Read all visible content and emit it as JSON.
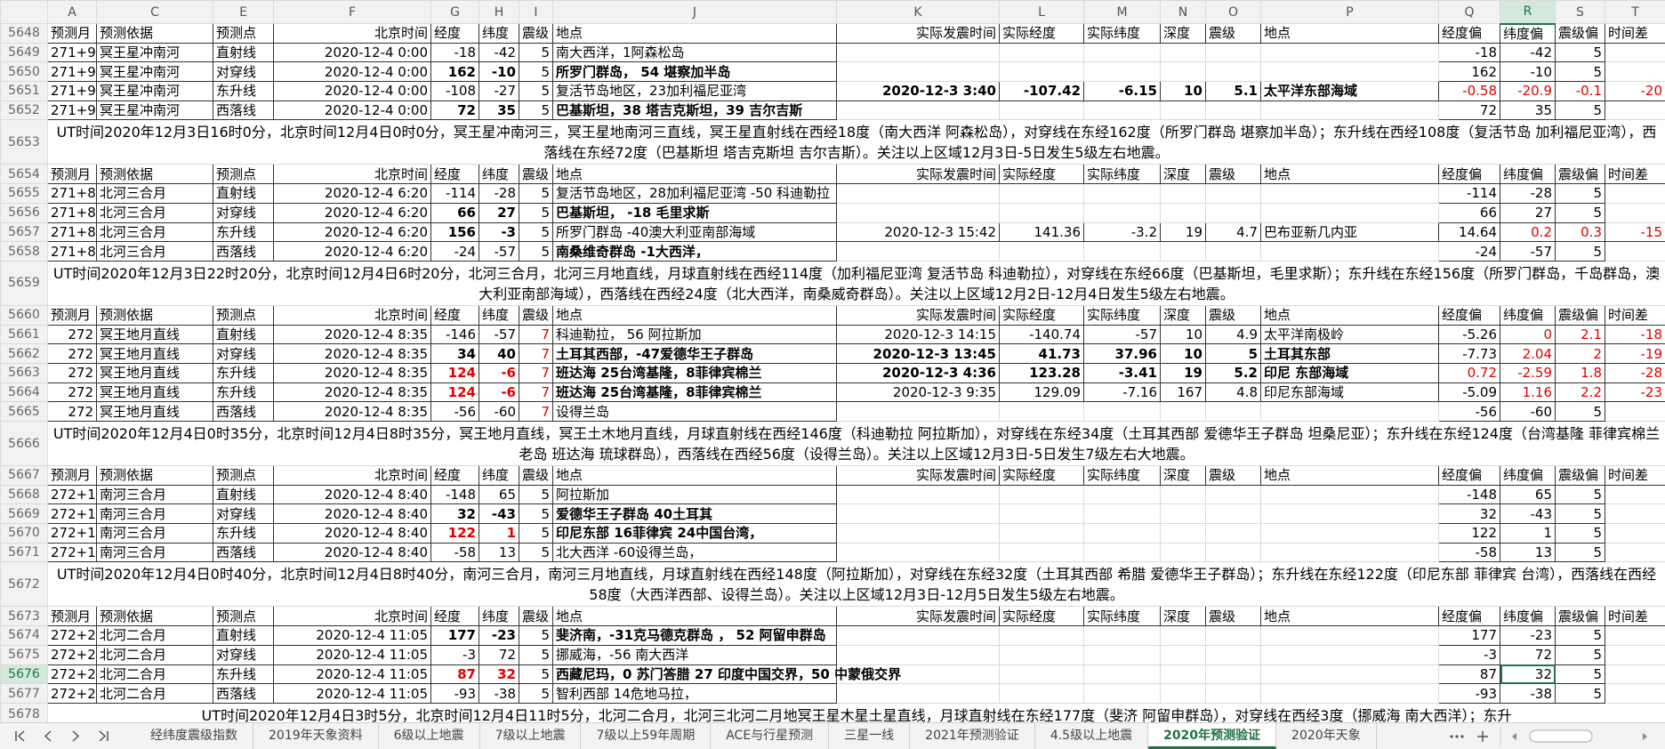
{
  "column_headers": [
    "A",
    "C",
    "E",
    "F",
    "G",
    "H",
    "I",
    "J",
    "K",
    "L",
    "M",
    "N",
    "O",
    "P",
    "Q",
    "R",
    "S",
    "T"
  ],
  "rows": [
    {
      "num": 5648,
      "cells": {
        "A": "预测月",
        "C": "预测依据",
        "E": "预测点",
        "F": "北京时间",
        "G": "经度",
        "H": "纬度",
        "I": "震级",
        "J": "地点",
        "K": "实际发震时间",
        "L": "实际经度",
        "M": "实际纬度",
        "N": "深度",
        "O": "震级",
        "P": "地点",
        "Q": "经度偏",
        "R": "纬度偏",
        "S": "震级偏",
        "T": "时间差"
      }
    },
    {
      "num": 5649,
      "cells": {
        "A": "271+9",
        "C": "冥王星冲南河",
        "E": "直射线",
        "F": "2020-12-4 0:00",
        "G": -18,
        "H": -42,
        "I": 5,
        "J": "南大西洋，1阿森松岛",
        "Q": -18,
        "R": -42,
        "S": 5
      }
    },
    {
      "num": 5650,
      "cells": {
        "A": "271+9",
        "C": "冥王星冲南河",
        "E": "对穿线",
        "F": "2020-12-4 0:00",
        "G": 162,
        "H": -10,
        "I": 5,
        "J": "所罗门群岛， 54 堪察加半岛",
        "Q": 162,
        "R": -10,
        "S": 5
      },
      "bold": [
        "G",
        "H",
        "J"
      ]
    },
    {
      "num": 5651,
      "cells": {
        "A": "271+9",
        "C": "冥王星冲南河",
        "E": "东升线",
        "F": "2020-12-4 0:00",
        "G": -108,
        "H": -27,
        "I": 5,
        "J": "复活节岛地区，23加利福尼亚湾",
        "K": "2020-12-3 3:40",
        "L": -107.42,
        "M": -6.15,
        "N": 10,
        "O": 5.1,
        "P": "太平洋东部海域",
        "Q": -0.58,
        "R": -20.9,
        "S": -0.1,
        "T": -20
      },
      "bold": [
        "K",
        "L",
        "M",
        "N",
        "O",
        "P"
      ],
      "red": [
        "Q",
        "R",
        "S",
        "T"
      ]
    },
    {
      "num": 5652,
      "cells": {
        "A": "271+9",
        "C": "冥王星冲南河",
        "E": "西落线",
        "F": "2020-12-4 0:00",
        "G": 72,
        "H": 35,
        "I": 5,
        "J": "巴基斯坦，38 塔吉克斯坦，39 吉尔吉斯",
        "Q": 72,
        "R": 35,
        "S": 5
      },
      "bold": [
        "G",
        "H",
        "J"
      ]
    },
    {
      "num": 5653,
      "text": "UT时间2020年12月3日16时0分，北京时间12月4日0时0分，冥王星冲南河三，冥王星地南河三直线，冥王星直射线在西经18度（南大西洋 阿森松岛），对穿线在东经162度（所罗门群岛 堪察加半岛）；东升线在西经108度（复活节岛 加利福尼亚湾），西落线在东经72度（巴基斯坦 塔吉克斯坦 吉尔吉斯）。关注以上区域12月3日-5日发生5级左右地震。"
    },
    {
      "num": 5654,
      "cells": {
        "A": "预测月",
        "C": "预测依据",
        "E": "预测点",
        "F": "北京时间",
        "G": "经度",
        "H": "纬度",
        "I": "震级",
        "J": "地点",
        "K": "实际发震时间",
        "L": "实际经度",
        "M": "实际纬度",
        "N": "深度",
        "O": "震级",
        "P": "地点",
        "Q": "经度偏",
        "R": "纬度偏",
        "S": "震级偏",
        "T": "时间差"
      }
    },
    {
      "num": 5655,
      "cells": {
        "A": "271+8",
        "C": "北河三合月",
        "E": "直射线",
        "F": "2020-12-4 6:20",
        "G": -114,
        "H": -28,
        "I": 5,
        "J": "复活节岛地区，28加利福尼亚湾 -50 科迪勒拉",
        "Q": -114,
        "R": -28,
        "S": 5
      }
    },
    {
      "num": 5656,
      "cells": {
        "A": "271+8",
        "C": "北河三合月",
        "E": "对穿线",
        "F": "2020-12-4 6:20",
        "G": 66,
        "H": 27,
        "I": 5,
        "J": "巴基斯坦， -18 毛里求斯",
        "Q": 66,
        "R": 27,
        "S": 5
      },
      "bold": [
        "G",
        "H",
        "J"
      ]
    },
    {
      "num": 5657,
      "cells": {
        "A": "271+8",
        "C": "北河三合月",
        "E": "东升线",
        "F": "2020-12-4 6:20",
        "G": 156,
        "H": -3,
        "I": 5,
        "J": "所罗门群岛 -40澳大利亚南部海域",
        "K": "2020-12-3 15:42",
        "L": 141.36,
        "M": -3.2,
        "N": 19,
        "O": 4.7,
        "P": "巴布亚新几内亚",
        "Q": 14.64,
        "R": 0.2,
        "S": 0.3,
        "T": -15
      },
      "bold": [
        "G",
        "H"
      ],
      "red": [
        "R",
        "S",
        "T"
      ]
    },
    {
      "num": 5658,
      "cells": {
        "A": "271+8",
        "C": "北河三合月",
        "E": "西落线",
        "F": "2020-12-4 6:20",
        "G": -24,
        "H": -57,
        "I": 5,
        "J": "南桑维奇群岛 -1大西洋，",
        "Q": -24,
        "R": -57,
        "S": 5
      },
      "bold": [
        "J"
      ]
    },
    {
      "num": 5659,
      "text": "UT时间2020年12月3日22时20分，北京时间12月4日6时20分，北河三合月，北河三月地直线，月球直射线在西经114度（加利福尼亚湾 复活节岛 科迪勒拉），对穿线在东经66度（巴基斯坦，毛里求斯）；东升线在东经156度（所罗门群岛，千岛群岛，澳大利亚南部海域），西落线在西经24度（北大西洋，南桑威奇群岛）。关注以上区域12月2日-12月4日发生5级左右地震。"
    },
    {
      "num": 5660,
      "cells": {
        "A": "预测月",
        "C": "预测依据",
        "E": "预测点",
        "F": "北京时间",
        "G": "经度",
        "H": "纬度",
        "I": "震级",
        "J": "地点",
        "K": "实际发震时间",
        "L": "实际经度",
        "M": "实际纬度",
        "N": "深度",
        "O": "震级",
        "P": "地点",
        "Q": "经度偏",
        "R": "纬度偏",
        "S": "震级偏",
        "T": "时间差"
      }
    },
    {
      "num": 5661,
      "cells": {
        "A": 272,
        "C": "冥王地月直线",
        "E": "直射线",
        "F": "2020-12-4 8:35",
        "G": -146,
        "H": -57,
        "I": 7,
        "J": "科迪勒拉， 56 阿拉斯加",
        "K": "2020-12-3 14:15",
        "L": -140.74,
        "M": -57,
        "N": 10,
        "O": 4.9,
        "P": "太平洋南极岭",
        "Q": -5.26,
        "R": 0,
        "S": 2.1,
        "T": -18
      },
      "red": [
        "I",
        "R",
        "S",
        "T"
      ]
    },
    {
      "num": 5662,
      "cells": {
        "A": 272,
        "C": "冥王地月直线",
        "E": "对穿线",
        "F": "2020-12-4 8:35",
        "G": 34,
        "H": 40,
        "I": 7,
        "J": "土耳其西部，-47爱德华王子群岛",
        "K": "2020-12-3 13:45",
        "L": 41.73,
        "M": 37.96,
        "N": 10,
        "O": 5,
        "P": "土耳其东部",
        "Q": -7.73,
        "R": 2.04,
        "S": 2,
        "T": -19
      },
      "bold": [
        "G",
        "H",
        "J",
        "K",
        "L",
        "M",
        "N",
        "O",
        "P"
      ],
      "red": [
        "I",
        "R",
        "S",
        "T"
      ]
    },
    {
      "num": 5663,
      "cells": {
        "A": 272,
        "C": "冥王地月直线",
        "E": "东升线",
        "F": "2020-12-4 8:35",
        "G": 124,
        "H": -6,
        "I": 7,
        "J": "班达海 25台湾基隆，8菲律宾棉兰",
        "K": "2020-12-3 4:36",
        "L": 123.28,
        "M": -3.41,
        "N": 19,
        "O": 5.2,
        "P": "印尼 东部海域",
        "Q": 0.72,
        "R": -2.59,
        "S": 1.8,
        "T": -28
      },
      "bold": [
        "G",
        "H",
        "J",
        "K",
        "L",
        "M",
        "N",
        "O",
        "P"
      ],
      "red": [
        "G",
        "H",
        "I",
        "Q",
        "R",
        "S",
        "T"
      ]
    },
    {
      "num": 5664,
      "cells": {
        "A": 272,
        "C": "冥王地月直线",
        "E": "东升线",
        "F": "2020-12-4 8:35",
        "G": 124,
        "H": -6,
        "I": 7,
        "J": "班达海 25台湾基隆，8菲律宾棉兰",
        "K": "2020-12-3 9:35",
        "L": 129.09,
        "M": -7.16,
        "N": 167,
        "O": 4.8,
        "P": "印尼东部海域",
        "Q": -5.09,
        "R": 1.16,
        "S": 2.2,
        "T": -23
      },
      "bold": [
        "G",
        "H",
        "J"
      ],
      "red": [
        "G",
        "H",
        "I",
        "R",
        "S",
        "T"
      ]
    },
    {
      "num": 5665,
      "cells": {
        "A": 272,
        "C": "冥王地月直线",
        "E": "西落线",
        "F": "2020-12-4 8:35",
        "G": -56,
        "H": -60,
        "I": 7,
        "J": "设得兰岛",
        "Q": -56,
        "R": -60,
        "S": 5
      },
      "red": [
        "I"
      ]
    },
    {
      "num": 5666,
      "text": "UT时间2020年12月4日0时35分，北京时间12月4日8时35分，冥王地月直线，冥王土木地月直线，月球直射线在西经146度（科迪勒拉 阿拉斯加），对穿线在东经34度（土耳其西部 爱德华王子群岛 坦桑尼亚）；东升线在东经124度（台湾基隆 菲律宾棉兰老岛 班达海 琉球群岛），西落线在西经56度（设得兰岛）。关注以上区域12月3日-5日发生7级左右大地震。"
    },
    {
      "num": 5667,
      "cells": {
        "A": "预测月",
        "C": "预测依据",
        "E": "预测点",
        "F": "北京时间",
        "G": "经度",
        "H": "纬度",
        "I": "震级",
        "J": "地点",
        "K": "实际发震时间",
        "L": "实际经度",
        "M": "实际纬度",
        "N": "深度",
        "O": "震级",
        "P": "地点",
        "Q": "经度偏",
        "R": "纬度偏",
        "S": "震级偏",
        "T": "时间差"
      }
    },
    {
      "num": 5668,
      "cells": {
        "A": "272+1",
        "C": "南河三合月",
        "E": "直射线",
        "F": "2020-12-4 8:40",
        "G": -148,
        "H": 65,
        "I": 5,
        "J": "阿拉斯加",
        "Q": -148,
        "R": 65,
        "S": 5
      }
    },
    {
      "num": 5669,
      "cells": {
        "A": "272+1",
        "C": "南河三合月",
        "E": "对穿线",
        "F": "2020-12-4 8:40",
        "G": 32,
        "H": -43,
        "I": 5,
        "J": "爱德华王子群岛 40土耳其",
        "Q": 32,
        "R": -43,
        "S": 5
      },
      "bold": [
        "G",
        "H",
        "J"
      ]
    },
    {
      "num": 5670,
      "cells": {
        "A": "272+1",
        "C": "南河三合月",
        "E": "东升线",
        "F": "2020-12-4 8:40",
        "G": 122,
        "H": 1,
        "I": 5,
        "J": "印尼东部 16菲律宾  24中国台湾，",
        "Q": 122,
        "R": 1,
        "S": 5
      },
      "bold": [
        "G",
        "H",
        "J"
      ],
      "red": [
        "G",
        "H"
      ]
    },
    {
      "num": 5671,
      "cells": {
        "A": "272+1",
        "C": "南河三合月",
        "E": "西落线",
        "F": "2020-12-4 8:40",
        "G": -58,
        "H": 13,
        "I": 5,
        "J": "北大西洋 -60设得兰岛，",
        "Q": -58,
        "R": 13,
        "S": 5
      }
    },
    {
      "num": 5672,
      "text": "UT时间2020年12月4日0时40分，北京时间12月4日8时40分，南河三合月，南河三月地直线，月球直射线在西经148度（阿拉斯加），对穿线在东经32度（土耳其西部 希腊 爱德华王子群岛）；东升线在东经122度（印尼东部 菲律宾 台湾），西落线在西经58度（大西洋西部、设得兰岛）。关注以上区域12月3日-12月5日发生5级左右地震。"
    },
    {
      "num": 5673,
      "cells": {
        "A": "预测月",
        "C": "预测依据",
        "E": "预测点",
        "F": "北京时间",
        "G": "经度",
        "H": "纬度",
        "I": "震级",
        "J": "地点",
        "K": "实际发震时间",
        "L": "实际经度",
        "M": "实际纬度",
        "N": "深度",
        "O": "震级",
        "P": "地点",
        "Q": "经度偏",
        "R": "纬度偏",
        "S": "震级偏",
        "T": "时间差"
      }
    },
    {
      "num": 5674,
      "cells": {
        "A": "272+2",
        "C": "北河二合月",
        "E": "直射线",
        "F": "2020-12-4 11:05",
        "G": 177,
        "H": -23,
        "I": 5,
        "J": "斐济南，-31克马德克群岛 ， 52 阿留申群岛",
        "Q": 177,
        "R": -23,
        "S": 5
      },
      "bold": [
        "G",
        "H",
        "J"
      ]
    },
    {
      "num": 5675,
      "cells": {
        "A": "272+2",
        "C": "北河二合月",
        "E": "对穿线",
        "F": "2020-12-4 11:05",
        "G": -3,
        "H": 72,
        "I": 5,
        "J": "挪威海，-56 南大西洋",
        "Q": -3,
        "R": 72,
        "S": 5
      }
    },
    {
      "num": 5676,
      "cells": {
        "A": "272+2",
        "C": "北河二合月",
        "E": "东升线",
        "F": "2020-12-4 11:05",
        "G": 87,
        "H": 32,
        "I": 5,
        "J": "西藏尼玛，0 苏门答腊 27 印度中国交界，50 中蒙俄交界",
        "Q": 87,
        "R": 32,
        "S": 5
      },
      "bold": [
        "G",
        "H",
        "J"
      ],
      "red": [
        "G",
        "H"
      ]
    },
    {
      "num": 5677,
      "cells": {
        "A": "272+2",
        "C": "北河二合月",
        "E": "西落线",
        "F": "2020-12-4 11:05",
        "G": -93,
        "H": -38,
        "I": 5,
        "J": "智利西部 14危地马拉，",
        "Q": -93,
        "R": -38,
        "S": 5
      }
    },
    {
      "num": 5678,
      "text": "UT时间2020年12月4日3时5分，北京时间12月4日11时5分，北河二合月，北河三北河二月地冥王星木星土星直线，月球直射线在东经177度（斐济 阿留申群岛），对穿线在西经3度（挪威海 南大西洋）；东升"
    }
  ],
  "active_cell": {
    "row": 5676,
    "column": "R"
  },
  "sheet_tabs": [
    "经纬度震级指数",
    "2019年天象资料",
    "6级以上地震",
    "7级以上地震",
    "7级以上59年周期",
    "ACE与行星预测",
    "三星一线",
    "2021年预测验证",
    "4.5级以上地震",
    "2020年预测验证",
    "2020年天象"
  ],
  "active_tab": 9
}
